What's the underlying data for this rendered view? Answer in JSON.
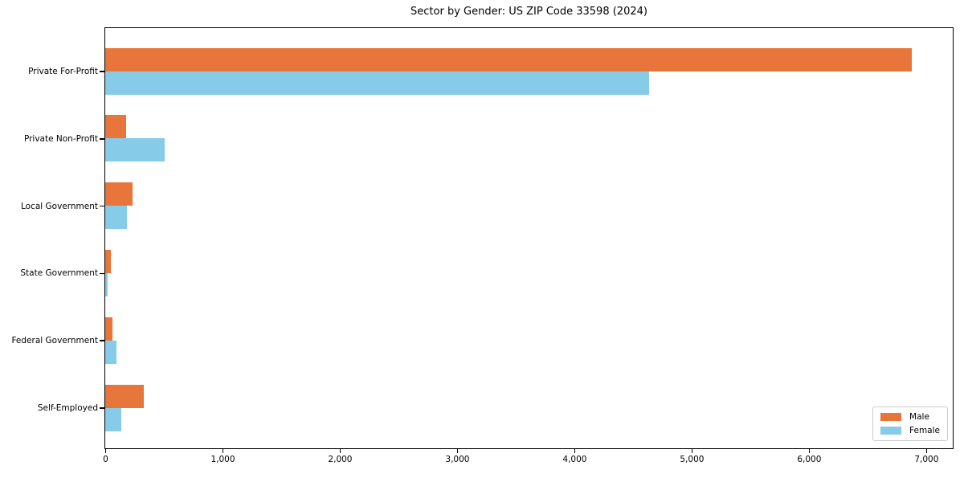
{
  "chart_data": {
    "type": "bar",
    "orientation": "horizontal",
    "title": "Sector by Gender: US ZIP Code 33598 (2024)",
    "xlabel": "",
    "ylabel": "",
    "categories": [
      "Private For-Profit",
      "Private Non-Profit",
      "Local Government",
      "State Government",
      "Federal Government",
      "Self-Employed"
    ],
    "series": [
      {
        "name": "Male",
        "color": "#e8763a",
        "values": [
          6870,
          175,
          230,
          50,
          65,
          330
        ]
      },
      {
        "name": "Female",
        "color": "#86cce8",
        "values": [
          4630,
          505,
          185,
          22,
          95,
          135
        ]
      }
    ],
    "xlim": [
      0,
      7220
    ],
    "x_ticks": [
      0,
      1000,
      2000,
      3000,
      4000,
      5000,
      6000,
      7000
    ],
    "x_tick_labels": [
      "0",
      "1,000",
      "2,000",
      "3,000",
      "4,000",
      "5,000",
      "6,000",
      "7,000"
    ],
    "grid": false,
    "legend": {
      "position": "lower-right"
    },
    "spine_color": "#000000",
    "background_color": "#ffffff"
  }
}
